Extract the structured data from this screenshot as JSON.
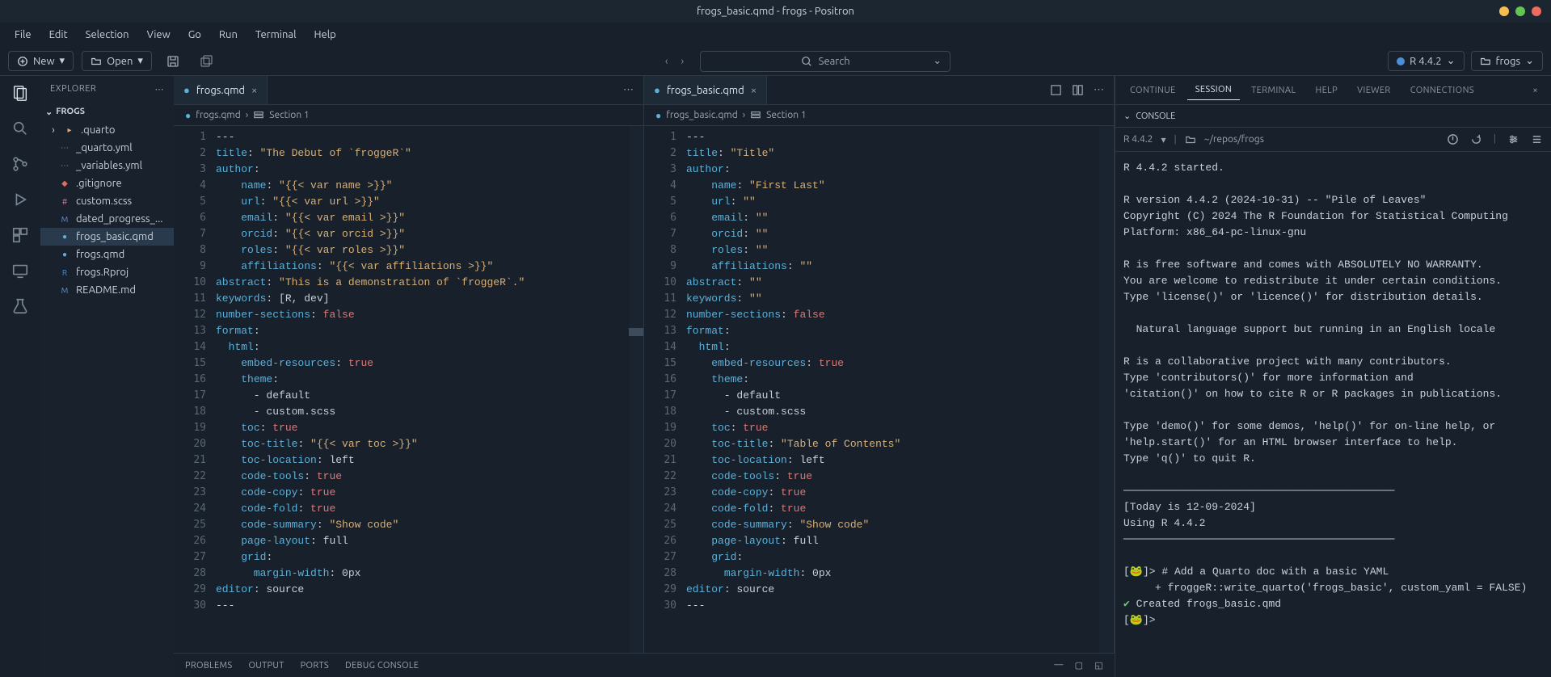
{
  "colors": {
    "bg": "#17202b",
    "panel": "#18212c",
    "border": "#2c3845",
    "text": "#c8d0d8",
    "muted": "#9aa6b2",
    "key": "#5fb0d8",
    "str": "#d6b07a",
    "bool": "#d67a7a",
    "traffic_yellow": "#f6be4f",
    "traffic_green": "#62c554",
    "traffic_red": "#ed6a5e"
  },
  "titlebar": {
    "title": "frogs_basic.qmd - frogs - Positron"
  },
  "menubar": [
    "File",
    "Edit",
    "Selection",
    "View",
    "Go",
    "Run",
    "Terminal",
    "Help"
  ],
  "toolbar": {
    "new_label": "New",
    "open_label": "Open",
    "search_placeholder": "Search",
    "r_version": "R 4.4.2",
    "project_name": "frogs"
  },
  "sidebar": {
    "header": "EXPLORER",
    "section": "FROGS",
    "files": [
      {
        "name": ".quarto",
        "type": "folder",
        "icon": "›",
        "iconColor": "#c8d0d8"
      },
      {
        "name": "_quarto.yml",
        "type": "file",
        "icon": "⋯",
        "iconColor": "#d67a7a"
      },
      {
        "name": "_variables.yml",
        "type": "file",
        "icon": "⋯",
        "iconColor": "#d67a7a"
      },
      {
        "name": ".gitignore",
        "type": "file",
        "icon": "◆",
        "iconColor": "#e06c5c"
      },
      {
        "name": "custom.scss",
        "type": "file",
        "icon": "#",
        "iconColor": "#d67aae"
      },
      {
        "name": "dated_progress_...",
        "type": "file",
        "icon": "M",
        "iconColor": "#6b95c9"
      },
      {
        "name": "frogs_basic.qmd",
        "type": "file",
        "icon": "●",
        "iconColor": "#5fb0d8",
        "selected": true
      },
      {
        "name": "frogs.qmd",
        "type": "file",
        "icon": "●",
        "iconColor": "#5fb0d8"
      },
      {
        "name": "frogs.Rproj",
        "type": "file",
        "icon": "R",
        "iconColor": "#4a8fd6"
      },
      {
        "name": "README.md",
        "type": "file",
        "icon": "M",
        "iconColor": "#6b95c9"
      }
    ]
  },
  "editor_left": {
    "tab_label": "frogs.qmd",
    "breadcrumb_file": "frogs.qmd",
    "breadcrumb_section": "Section 1",
    "lines": [
      [
        {
          "t": "dash",
          "v": "---"
        }
      ],
      [
        {
          "t": "key",
          "v": "title"
        },
        {
          "t": "dash",
          "v": ": "
        },
        {
          "t": "str",
          "v": "\"The Debut of `froggeR`\""
        }
      ],
      [
        {
          "t": "key",
          "v": "author"
        },
        {
          "t": "dash",
          "v": ":"
        }
      ],
      [
        {
          "t": "dash",
          "v": "    "
        },
        {
          "t": "key",
          "v": "name"
        },
        {
          "t": "dash",
          "v": ": "
        },
        {
          "t": "str",
          "v": "\"{{< var name >}}\""
        }
      ],
      [
        {
          "t": "dash",
          "v": "    "
        },
        {
          "t": "key",
          "v": "url"
        },
        {
          "t": "dash",
          "v": ": "
        },
        {
          "t": "str",
          "v": "\"{{< var url >}}\""
        }
      ],
      [
        {
          "t": "dash",
          "v": "    "
        },
        {
          "t": "key",
          "v": "email"
        },
        {
          "t": "dash",
          "v": ": "
        },
        {
          "t": "str",
          "v": "\"{{< var email >}}\""
        }
      ],
      [
        {
          "t": "dash",
          "v": "    "
        },
        {
          "t": "key",
          "v": "orcid"
        },
        {
          "t": "dash",
          "v": ": "
        },
        {
          "t": "str",
          "v": "\"{{< var orcid >}}\""
        }
      ],
      [
        {
          "t": "dash",
          "v": "    "
        },
        {
          "t": "key",
          "v": "roles"
        },
        {
          "t": "dash",
          "v": ": "
        },
        {
          "t": "str",
          "v": "\"{{< var roles >}}\""
        }
      ],
      [
        {
          "t": "dash",
          "v": "    "
        },
        {
          "t": "key",
          "v": "affiliations"
        },
        {
          "t": "dash",
          "v": ": "
        },
        {
          "t": "str",
          "v": "\"{{< var affiliations >}}\""
        }
      ],
      [
        {
          "t": "key",
          "v": "abstract"
        },
        {
          "t": "dash",
          "v": ": "
        },
        {
          "t": "str",
          "v": "\"This is a demonstration of `froggeR`.\""
        }
      ],
      [
        {
          "t": "key",
          "v": "keywords"
        },
        {
          "t": "dash",
          "v": ": [R, dev]"
        }
      ],
      [
        {
          "t": "key",
          "v": "number-sections"
        },
        {
          "t": "dash",
          "v": ": "
        },
        {
          "t": "bool",
          "v": "false"
        }
      ],
      [
        {
          "t": "key",
          "v": "format"
        },
        {
          "t": "dash",
          "v": ":"
        }
      ],
      [
        {
          "t": "dash",
          "v": "  "
        },
        {
          "t": "key",
          "v": "html"
        },
        {
          "t": "dash",
          "v": ":"
        }
      ],
      [
        {
          "t": "dash",
          "v": "    "
        },
        {
          "t": "key",
          "v": "embed-resources"
        },
        {
          "t": "dash",
          "v": ": "
        },
        {
          "t": "bool",
          "v": "true"
        }
      ],
      [
        {
          "t": "dash",
          "v": "    "
        },
        {
          "t": "key",
          "v": "theme"
        },
        {
          "t": "dash",
          "v": ":"
        }
      ],
      [
        {
          "t": "dash",
          "v": "      - default"
        }
      ],
      [
        {
          "t": "dash",
          "v": "      - custom.scss"
        }
      ],
      [
        {
          "t": "dash",
          "v": "    "
        },
        {
          "t": "key",
          "v": "toc"
        },
        {
          "t": "dash",
          "v": ": "
        },
        {
          "t": "bool",
          "v": "true"
        }
      ],
      [
        {
          "t": "dash",
          "v": "    "
        },
        {
          "t": "key",
          "v": "toc-title"
        },
        {
          "t": "dash",
          "v": ": "
        },
        {
          "t": "str",
          "v": "\"{{< var toc >}}\""
        }
      ],
      [
        {
          "t": "dash",
          "v": "    "
        },
        {
          "t": "key",
          "v": "toc-location"
        },
        {
          "t": "dash",
          "v": ": left"
        }
      ],
      [
        {
          "t": "dash",
          "v": "    "
        },
        {
          "t": "key",
          "v": "code-tools"
        },
        {
          "t": "dash",
          "v": ": "
        },
        {
          "t": "bool",
          "v": "true"
        }
      ],
      [
        {
          "t": "dash",
          "v": "    "
        },
        {
          "t": "key",
          "v": "code-copy"
        },
        {
          "t": "dash",
          "v": ": "
        },
        {
          "t": "bool",
          "v": "true"
        }
      ],
      [
        {
          "t": "dash",
          "v": "    "
        },
        {
          "t": "key",
          "v": "code-fold"
        },
        {
          "t": "dash",
          "v": ": "
        },
        {
          "t": "bool",
          "v": "true"
        }
      ],
      [
        {
          "t": "dash",
          "v": "    "
        },
        {
          "t": "key",
          "v": "code-summary"
        },
        {
          "t": "dash",
          "v": ": "
        },
        {
          "t": "str",
          "v": "\"Show code\""
        }
      ],
      [
        {
          "t": "dash",
          "v": "    "
        },
        {
          "t": "key",
          "v": "page-layout"
        },
        {
          "t": "dash",
          "v": ": full"
        }
      ],
      [
        {
          "t": "dash",
          "v": "    "
        },
        {
          "t": "key",
          "v": "grid"
        },
        {
          "t": "dash",
          "v": ":"
        }
      ],
      [
        {
          "t": "dash",
          "v": "      "
        },
        {
          "t": "key",
          "v": "margin-width"
        },
        {
          "t": "dash",
          "v": ": 0px"
        }
      ],
      [
        {
          "t": "key",
          "v": "editor"
        },
        {
          "t": "dash",
          "v": ": source"
        }
      ],
      [
        {
          "t": "dash",
          "v": "---"
        }
      ]
    ]
  },
  "editor_right": {
    "tab_label": "frogs_basic.qmd",
    "breadcrumb_file": "frogs_basic.qmd",
    "breadcrumb_section": "Section 1",
    "lines": [
      [
        {
          "t": "dash",
          "v": "---"
        }
      ],
      [
        {
          "t": "key",
          "v": "title"
        },
        {
          "t": "dash",
          "v": ": "
        },
        {
          "t": "str",
          "v": "\"Title\""
        }
      ],
      [
        {
          "t": "key",
          "v": "author"
        },
        {
          "t": "dash",
          "v": ":"
        }
      ],
      [
        {
          "t": "dash",
          "v": "    "
        },
        {
          "t": "key",
          "v": "name"
        },
        {
          "t": "dash",
          "v": ": "
        },
        {
          "t": "str",
          "v": "\"First Last\""
        }
      ],
      [
        {
          "t": "dash",
          "v": "    "
        },
        {
          "t": "key",
          "v": "url"
        },
        {
          "t": "dash",
          "v": ": "
        },
        {
          "t": "str",
          "v": "\"\""
        }
      ],
      [
        {
          "t": "dash",
          "v": "    "
        },
        {
          "t": "key",
          "v": "email"
        },
        {
          "t": "dash",
          "v": ": "
        },
        {
          "t": "str",
          "v": "\"\""
        }
      ],
      [
        {
          "t": "dash",
          "v": "    "
        },
        {
          "t": "key",
          "v": "orcid"
        },
        {
          "t": "dash",
          "v": ": "
        },
        {
          "t": "str",
          "v": "\"\""
        }
      ],
      [
        {
          "t": "dash",
          "v": "    "
        },
        {
          "t": "key",
          "v": "roles"
        },
        {
          "t": "dash",
          "v": ": "
        },
        {
          "t": "str",
          "v": "\"\""
        }
      ],
      [
        {
          "t": "dash",
          "v": "    "
        },
        {
          "t": "key",
          "v": "affiliations"
        },
        {
          "t": "dash",
          "v": ": "
        },
        {
          "t": "str",
          "v": "\"\""
        }
      ],
      [
        {
          "t": "key",
          "v": "abstract"
        },
        {
          "t": "dash",
          "v": ": "
        },
        {
          "t": "str",
          "v": "\"\""
        }
      ],
      [
        {
          "t": "key",
          "v": "keywords"
        },
        {
          "t": "dash",
          "v": ": "
        },
        {
          "t": "str",
          "v": "\"\""
        }
      ],
      [
        {
          "t": "key",
          "v": "number-sections"
        },
        {
          "t": "dash",
          "v": ": "
        },
        {
          "t": "bool",
          "v": "false"
        }
      ],
      [
        {
          "t": "key",
          "v": "format"
        },
        {
          "t": "dash",
          "v": ":"
        }
      ],
      [
        {
          "t": "dash",
          "v": "  "
        },
        {
          "t": "key",
          "v": "html"
        },
        {
          "t": "dash",
          "v": ":"
        }
      ],
      [
        {
          "t": "dash",
          "v": "    "
        },
        {
          "t": "key",
          "v": "embed-resources"
        },
        {
          "t": "dash",
          "v": ": "
        },
        {
          "t": "bool",
          "v": "true"
        }
      ],
      [
        {
          "t": "dash",
          "v": "    "
        },
        {
          "t": "key",
          "v": "theme"
        },
        {
          "t": "dash",
          "v": ":"
        }
      ],
      [
        {
          "t": "dash",
          "v": "      - default"
        }
      ],
      [
        {
          "t": "dash",
          "v": "      - custom.scss"
        }
      ],
      [
        {
          "t": "dash",
          "v": "    "
        },
        {
          "t": "key",
          "v": "toc"
        },
        {
          "t": "dash",
          "v": ": "
        },
        {
          "t": "bool",
          "v": "true"
        }
      ],
      [
        {
          "t": "dash",
          "v": "    "
        },
        {
          "t": "key",
          "v": "toc-title"
        },
        {
          "t": "dash",
          "v": ": "
        },
        {
          "t": "str",
          "v": "\"Table of Contents\""
        }
      ],
      [
        {
          "t": "dash",
          "v": "    "
        },
        {
          "t": "key",
          "v": "toc-location"
        },
        {
          "t": "dash",
          "v": ": left"
        }
      ],
      [
        {
          "t": "dash",
          "v": "    "
        },
        {
          "t": "key",
          "v": "code-tools"
        },
        {
          "t": "dash",
          "v": ": "
        },
        {
          "t": "bool",
          "v": "true"
        }
      ],
      [
        {
          "t": "dash",
          "v": "    "
        },
        {
          "t": "key",
          "v": "code-copy"
        },
        {
          "t": "dash",
          "v": ": "
        },
        {
          "t": "bool",
          "v": "true"
        }
      ],
      [
        {
          "t": "dash",
          "v": "    "
        },
        {
          "t": "key",
          "v": "code-fold"
        },
        {
          "t": "dash",
          "v": ": "
        },
        {
          "t": "bool",
          "v": "true"
        }
      ],
      [
        {
          "t": "dash",
          "v": "    "
        },
        {
          "t": "key",
          "v": "code-summary"
        },
        {
          "t": "dash",
          "v": ": "
        },
        {
          "t": "str",
          "v": "\"Show code\""
        }
      ],
      [
        {
          "t": "dash",
          "v": "    "
        },
        {
          "t": "key",
          "v": "page-layout"
        },
        {
          "t": "dash",
          "v": ": full"
        }
      ],
      [
        {
          "t": "dash",
          "v": "    "
        },
        {
          "t": "key",
          "v": "grid"
        },
        {
          "t": "dash",
          "v": ":"
        }
      ],
      [
        {
          "t": "dash",
          "v": "      "
        },
        {
          "t": "key",
          "v": "margin-width"
        },
        {
          "t": "dash",
          "v": ": 0px"
        }
      ],
      [
        {
          "t": "key",
          "v": "editor"
        },
        {
          "t": "dash",
          "v": ": source"
        }
      ],
      [
        {
          "t": "dash",
          "v": "---"
        }
      ]
    ]
  },
  "bottom_tabs": [
    "PROBLEMS",
    "OUTPUT",
    "PORTS",
    "DEBUG CONSOLE"
  ],
  "right_panel": {
    "tabs": [
      "CONTINUE",
      "SESSION",
      "TERMINAL",
      "HELP",
      "VIEWER",
      "CONNECTIONS"
    ],
    "active_tab": "SESSION",
    "section": "CONSOLE",
    "r_version": "R 4.4.2",
    "cwd": "~/repos/frogs",
    "console_lines": [
      "R 4.4.2 started.",
      "",
      "R version 4.4.2 (2024-10-31) -- \"Pile of Leaves\"",
      "Copyright (C) 2024 The R Foundation for Statistical Computing",
      "Platform: x86_64-pc-linux-gnu",
      "",
      "R is free software and comes with ABSOLUTELY NO WARRANTY.",
      "You are welcome to redistribute it under certain conditions.",
      "Type 'license()' or 'licence()' for distribution details.",
      "",
      "  Natural language support but running in an English locale",
      "",
      "R is a collaborative project with many contributors.",
      "Type 'contributors()' for more information and",
      "'citation()' on how to cite R or R packages in publications.",
      "",
      "Type 'demo()' for some demos, 'help()' for on-line help, or",
      "'help.start()' for an HTML browser interface to help.",
      "Type 'q()' to quit R.",
      "",
      "───────────────────────────────────────────",
      "[Today is 12-09-2024]",
      "Using R 4.4.2",
      "───────────────────────────────────────────",
      ""
    ],
    "prompt1_cmd": "# Add a Quarto doc with a basic YAML",
    "prompt1_cont": "froggeR::write_quarto('frogs_basic', custom_yaml = FALSE)",
    "result_ok": "Created frogs_basic.qmd",
    "prompt2_cmd": ""
  }
}
